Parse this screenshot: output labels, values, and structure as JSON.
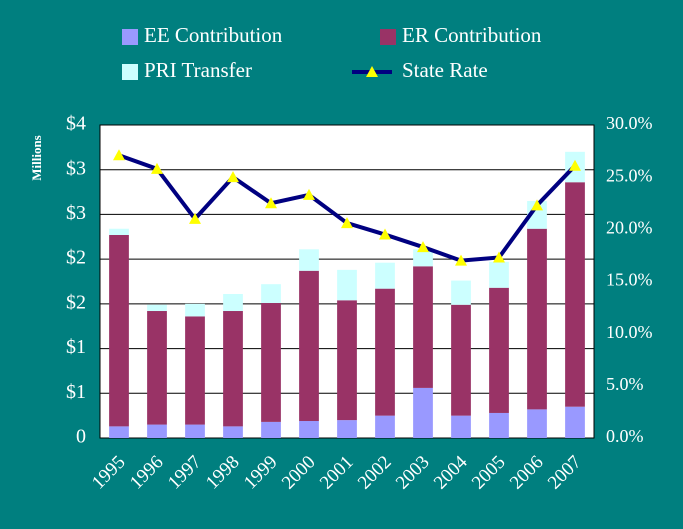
{
  "chart_data": {
    "type": "bar",
    "stacked": true,
    "y_label": "Millions",
    "categories": [
      "1995",
      "1996",
      "1997",
      "1998",
      "1999",
      "2000",
      "2001",
      "2002",
      "2003",
      "2004",
      "2005",
      "2006",
      "2007"
    ],
    "series": [
      {
        "name": "EE Contribution",
        "color": "#9999ff",
        "values": [
          0.13,
          0.15,
          0.15,
          0.13,
          0.18,
          0.19,
          0.2,
          0.25,
          0.56,
          0.25,
          0.28,
          0.32,
          0.35
        ]
      },
      {
        "name": "ER Contribution",
        "color": "#993366",
        "values": [
          2.14,
          1.27,
          1.21,
          1.29,
          1.33,
          1.68,
          1.34,
          1.42,
          1.36,
          1.24,
          1.4,
          2.02,
          2.51
        ]
      },
      {
        "name": "PRI Transfer",
        "color": "#ccffff",
        "values": [
          0.07,
          0.07,
          0.14,
          0.19,
          0.21,
          0.24,
          0.34,
          0.29,
          0.19,
          0.27,
          0.29,
          0.31,
          0.34
        ]
      },
      {
        "name": "State Rate",
        "type": "line",
        "axis": "y2",
        "color": "#000080",
        "marker_color": "#ffff00",
        "values": [
          27.1,
          25.8,
          21.0,
          25.0,
          22.5,
          23.3,
          20.6,
          19.5,
          18.3,
          17.0,
          17.3,
          22.3,
          26.1
        ]
      }
    ],
    "ylim": [
      0,
      3.5
    ],
    "yticks": [
      0,
      {
        "value": 0.5,
        "label": "$1"
      },
      {
        "value": 1.0,
        "label": "$1"
      },
      {
        "value": 1.5,
        "label": "$2"
      },
      {
        "value": 2.0,
        "label": "$2"
      },
      {
        "value": 2.5,
        "label": "$3"
      },
      {
        "value": 3.0,
        "label": "$3"
      },
      {
        "value": 3.5,
        "label": "$4"
      }
    ],
    "y2lim": [
      0,
      30
    ],
    "y2ticks": [
      {
        "value": 0,
        "label": "0.0%"
      },
      {
        "value": 5,
        "label": "5.0%"
      },
      {
        "value": 10,
        "label": "10.0%"
      },
      {
        "value": 15,
        "label": "15.0%"
      },
      {
        "value": 20,
        "label": "20.0%"
      },
      {
        "value": 25,
        "label": "25.0%"
      },
      {
        "value": 30,
        "label": "30.0%"
      }
    ],
    "grid": true,
    "legend": "top"
  }
}
